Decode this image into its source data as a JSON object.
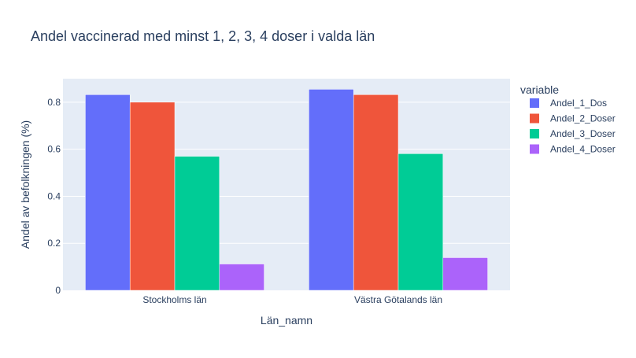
{
  "chart_data": {
    "type": "bar",
    "title": "Andel vaccinerad med minst 1, 2, 3, 4 doser i valda län",
    "xlabel": "Län_namn",
    "ylabel": "Andel av befolkningen (%)",
    "categories": [
      "Stockholms län",
      "Västra Götalands län"
    ],
    "series": [
      {
        "name": "Andel_1_Dos",
        "values": [
          0.832,
          0.855
        ],
        "color": "#636efa"
      },
      {
        "name": "Andel_2_Doser",
        "values": [
          0.8,
          0.832
        ],
        "color": "#ef553b"
      },
      {
        "name": "Andel_3_Doser",
        "values": [
          0.57,
          0.581
        ],
        "color": "#00cc96"
      },
      {
        "name": "Andel_4_Doser",
        "values": [
          0.112,
          0.139
        ],
        "color": "#ab63fa"
      }
    ],
    "ylim": [
      0,
      0.9
    ],
    "yticks": [
      0,
      0.2,
      0.4,
      0.6,
      0.8
    ],
    "ytick_labels": [
      "0",
      "0.2",
      "0.4",
      "0.6",
      "0.8"
    ],
    "grid": true,
    "legend": {
      "title": "variable",
      "position": "right"
    },
    "colors": {
      "plot_background": "#e5ecf6",
      "grid": "#ffffff",
      "text": "#2a3f5f"
    }
  }
}
